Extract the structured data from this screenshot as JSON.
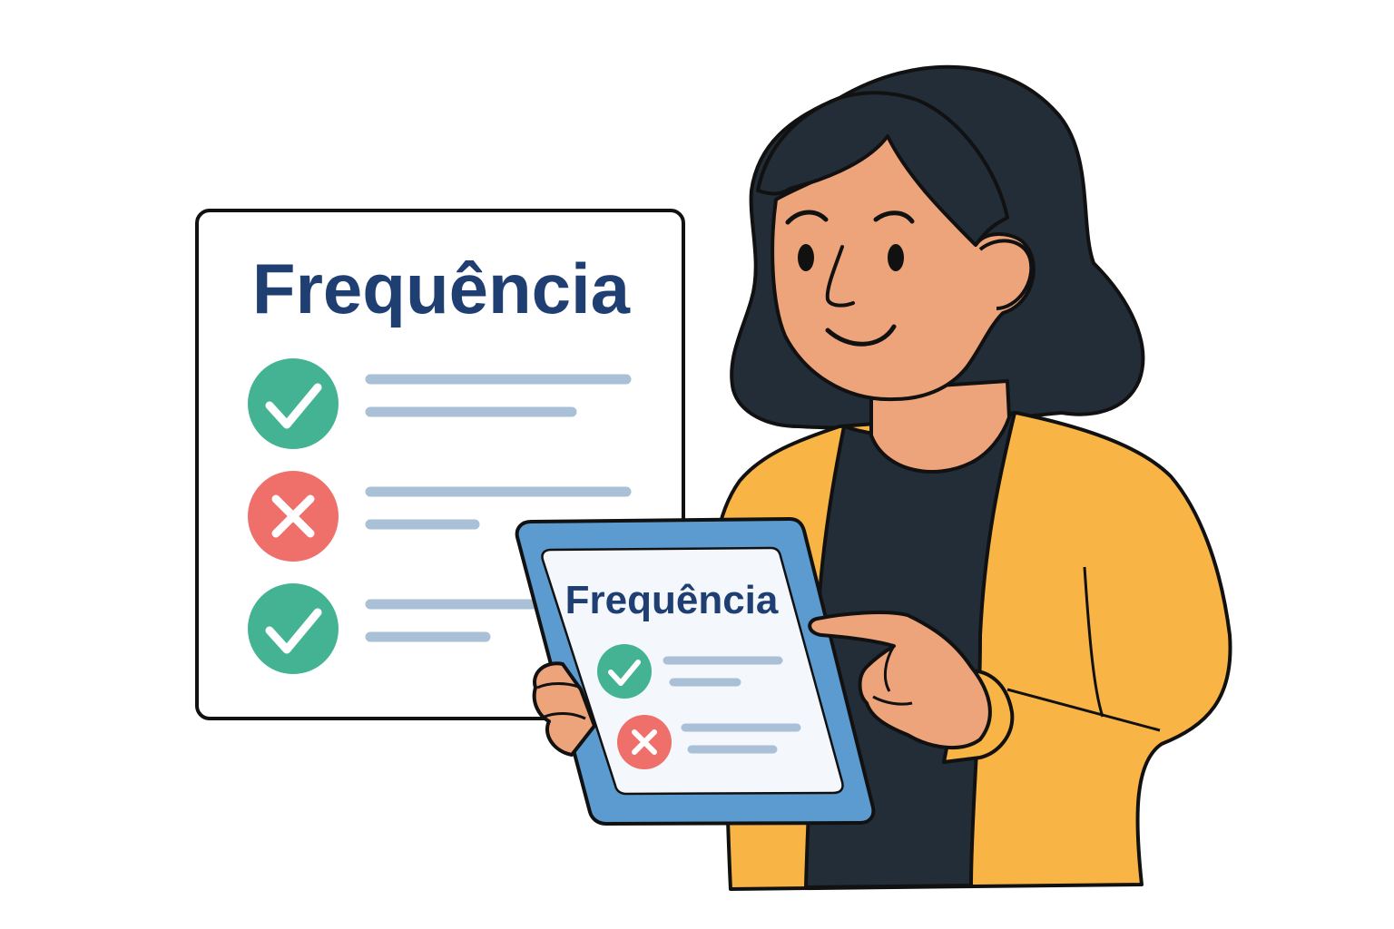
{
  "board": {
    "title": "Frequência",
    "items": [
      {
        "status": "present",
        "icon": "check-icon"
      },
      {
        "status": "absent",
        "icon": "cross-icon"
      },
      {
        "status": "present",
        "icon": "check-icon"
      }
    ]
  },
  "tablet": {
    "title": "Frequência",
    "items": [
      {
        "status": "present",
        "icon": "check-icon"
      },
      {
        "status": "absent",
        "icon": "cross-icon"
      }
    ]
  },
  "colors": {
    "title": "#1f3f73",
    "present": "#43b394",
    "absent": "#ef6f6a",
    "line": "#a9c0d6",
    "outline": "#111111",
    "skin": "#eea47b",
    "hair": "#232d38",
    "cardigan": "#f8b545",
    "shirt": "#232d38",
    "tablet_frame": "#5b9bd0",
    "tablet_screen": "#f4f8fc"
  }
}
